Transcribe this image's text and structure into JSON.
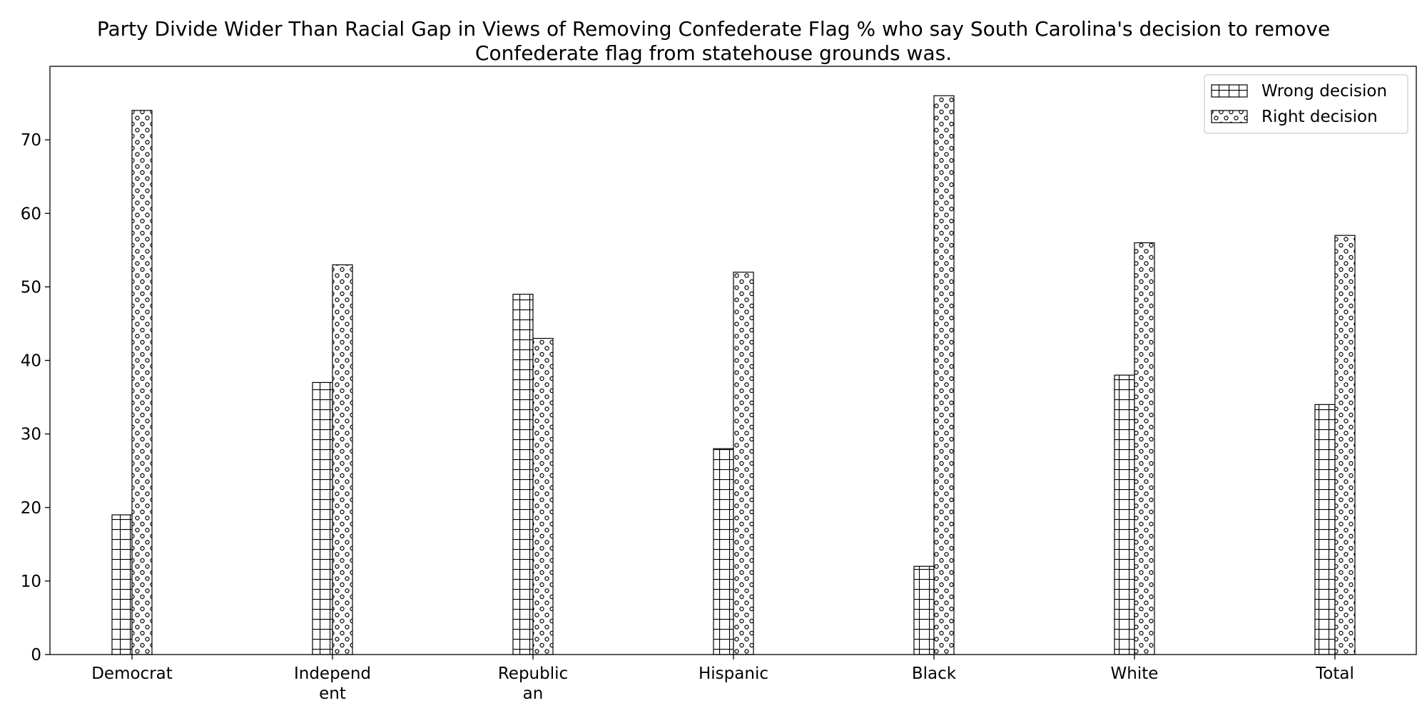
{
  "chart_data": {
    "type": "bar",
    "title": "Party Divide Wider Than Racial Gap in Views of Removing Confederate Flag % who say South Carolina's decision to remove Confederate flag from statehouse grounds was.",
    "title_lines": [
      "Party Divide Wider Than Racial Gap in Views of Removing Confederate Flag % who say South Carolina's decision to remove",
      "Confederate flag from statehouse grounds was."
    ],
    "xlabel": "",
    "ylabel": "",
    "categories": [
      "Democrat",
      "Independent",
      "Republican",
      "Hispanic",
      "Black",
      "White",
      "Total"
    ],
    "category_tick_lines": [
      [
        "Democrat"
      ],
      [
        "Independ",
        "ent"
      ],
      [
        "Republic",
        "an"
      ],
      [
        "Hispanic"
      ],
      [
        "Black"
      ],
      [
        "White"
      ],
      [
        "Total"
      ]
    ],
    "series": [
      {
        "name": "Wrong decision",
        "values": [
          19,
          37,
          49,
          28,
          12,
          38,
          34
        ],
        "pattern": "grid"
      },
      {
        "name": "Right decision",
        "values": [
          74,
          53,
          43,
          52,
          76,
          56,
          57
        ],
        "pattern": "circles"
      }
    ],
    "ylim": [
      0,
      80
    ],
    "yticks": [
      0,
      10,
      20,
      30,
      40,
      50,
      60,
      70
    ],
    "grid": false,
    "legend_position": "top-right",
    "colors": {
      "bar_fill": "#ffffff",
      "bar_edge": "#000000",
      "axes": "#000000"
    }
  }
}
